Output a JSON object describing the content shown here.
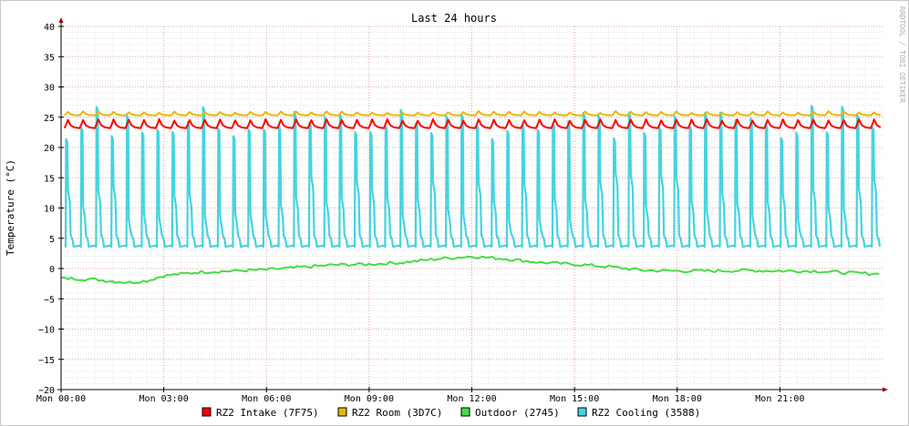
{
  "chart_data": {
    "type": "line",
    "title": "Last 24 hours",
    "ylabel": "Temperature (°C)",
    "watermark": "RRDTOOL / TOBI OETIKER",
    "ylim": [
      -20,
      40
    ],
    "y_ticks": [
      40,
      35,
      30,
      25,
      20,
      15,
      10,
      5,
      0,
      -5,
      -10,
      -15,
      -20
    ],
    "xlim": [
      "Mon 00:00",
      "Tue 00:00"
    ],
    "x_ticks": [
      "Mon 00:00",
      "Mon 03:00",
      "Mon 06:00",
      "Mon 09:00",
      "Mon 12:00",
      "Mon 15:00",
      "Mon 18:00",
      "Mon 21:00"
    ],
    "grid": true,
    "legend_position": "bottom",
    "colors": {
      "grid_major": "#e8a0a0",
      "grid_minor": "#e6e6e6",
      "axis": "#000000",
      "arrow": "#a00000"
    },
    "series": [
      {
        "name": "RZ2 Intake (7F75)",
        "color": "#ff0000",
        "pattern": {
          "cycles": 54,
          "base": 23.2,
          "peak": 24.7
        }
      },
      {
        "name": "RZ2 Room (3D7C)",
        "color": "#e6b800",
        "pattern": {
          "cycles": 54,
          "base": 25.3,
          "peak": 26.0
        }
      },
      {
        "name": "Outdoor (2745)",
        "color": "#44dd44",
        "hours": [
          0,
          1,
          1.5,
          2,
          2.5,
          3,
          4,
          5,
          6,
          7,
          8,
          9,
          10,
          11,
          12,
          13,
          14,
          15,
          16,
          17,
          18,
          19,
          20,
          21,
          22,
          23,
          23.9
        ],
        "values": [
          -1.6,
          -1.8,
          -2.1,
          -2.3,
          -2.0,
          -1.2,
          -0.6,
          -0.4,
          -0.2,
          0.2,
          0.6,
          0.7,
          1.0,
          1.6,
          2.0,
          1.6,
          1.0,
          0.7,
          0.3,
          -0.3,
          -0.4,
          -0.4,
          -0.3,
          -0.4,
          -0.4,
          -0.7,
          -0.9
        ]
      },
      {
        "name": "RZ2 Cooling (3588)",
        "color": "#44d4e0",
        "pattern": {
          "cycles": 54,
          "base": 3.6,
          "peak_range": [
            21,
            27
          ]
        }
      }
    ]
  },
  "legend": {
    "items": [
      {
        "label": "RZ2 Intake (7F75)",
        "color": "#ff0000"
      },
      {
        "label": "RZ2 Room (3D7C)",
        "color": "#e6b800"
      },
      {
        "label": "Outdoor (2745)",
        "color": "#44dd44"
      },
      {
        "label": "RZ2 Cooling (3588)",
        "color": "#44d4e0"
      }
    ]
  }
}
